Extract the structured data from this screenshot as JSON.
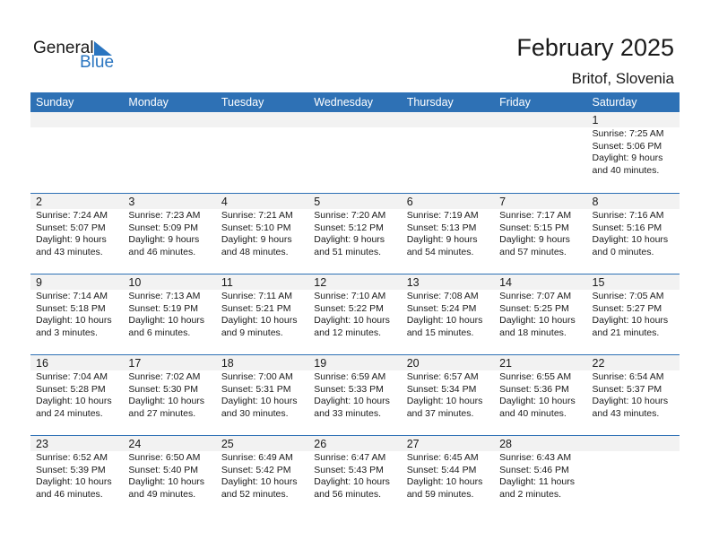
{
  "logo": {
    "line1": "General",
    "line2": "Blue"
  },
  "title": "February 2025",
  "location": "Britof, Slovenia",
  "colors": {
    "header": "#2e71b5",
    "date_strip": "#f2f2f2",
    "logo_blue": "#2a75c0"
  },
  "weekdays": [
    "Sunday",
    "Monday",
    "Tuesday",
    "Wednesday",
    "Thursday",
    "Friday",
    "Saturday"
  ],
  "weeks": [
    [
      null,
      null,
      null,
      null,
      null,
      null,
      {
        "day": "1",
        "sunrise": "Sunrise: 7:25 AM",
        "sunset": "Sunset: 5:06 PM",
        "daylight1": "Daylight: 9 hours",
        "daylight2": "and 40 minutes."
      }
    ],
    [
      {
        "day": "2",
        "sunrise": "Sunrise: 7:24 AM",
        "sunset": "Sunset: 5:07 PM",
        "daylight1": "Daylight: 9 hours",
        "daylight2": "and 43 minutes."
      },
      {
        "day": "3",
        "sunrise": "Sunrise: 7:23 AM",
        "sunset": "Sunset: 5:09 PM",
        "daylight1": "Daylight: 9 hours",
        "daylight2": "and 46 minutes."
      },
      {
        "day": "4",
        "sunrise": "Sunrise: 7:21 AM",
        "sunset": "Sunset: 5:10 PM",
        "daylight1": "Daylight: 9 hours",
        "daylight2": "and 48 minutes."
      },
      {
        "day": "5",
        "sunrise": "Sunrise: 7:20 AM",
        "sunset": "Sunset: 5:12 PM",
        "daylight1": "Daylight: 9 hours",
        "daylight2": "and 51 minutes."
      },
      {
        "day": "6",
        "sunrise": "Sunrise: 7:19 AM",
        "sunset": "Sunset: 5:13 PM",
        "daylight1": "Daylight: 9 hours",
        "daylight2": "and 54 minutes."
      },
      {
        "day": "7",
        "sunrise": "Sunrise: 7:17 AM",
        "sunset": "Sunset: 5:15 PM",
        "daylight1": "Daylight: 9 hours",
        "daylight2": "and 57 minutes."
      },
      {
        "day": "8",
        "sunrise": "Sunrise: 7:16 AM",
        "sunset": "Sunset: 5:16 PM",
        "daylight1": "Daylight: 10 hours",
        "daylight2": "and 0 minutes."
      }
    ],
    [
      {
        "day": "9",
        "sunrise": "Sunrise: 7:14 AM",
        "sunset": "Sunset: 5:18 PM",
        "daylight1": "Daylight: 10 hours",
        "daylight2": "and 3 minutes."
      },
      {
        "day": "10",
        "sunrise": "Sunrise: 7:13 AM",
        "sunset": "Sunset: 5:19 PM",
        "daylight1": "Daylight: 10 hours",
        "daylight2": "and 6 minutes."
      },
      {
        "day": "11",
        "sunrise": "Sunrise: 7:11 AM",
        "sunset": "Sunset: 5:21 PM",
        "daylight1": "Daylight: 10 hours",
        "daylight2": "and 9 minutes."
      },
      {
        "day": "12",
        "sunrise": "Sunrise: 7:10 AM",
        "sunset": "Sunset: 5:22 PM",
        "daylight1": "Daylight: 10 hours",
        "daylight2": "and 12 minutes."
      },
      {
        "day": "13",
        "sunrise": "Sunrise: 7:08 AM",
        "sunset": "Sunset: 5:24 PM",
        "daylight1": "Daylight: 10 hours",
        "daylight2": "and 15 minutes."
      },
      {
        "day": "14",
        "sunrise": "Sunrise: 7:07 AM",
        "sunset": "Sunset: 5:25 PM",
        "daylight1": "Daylight: 10 hours",
        "daylight2": "and 18 minutes."
      },
      {
        "day": "15",
        "sunrise": "Sunrise: 7:05 AM",
        "sunset": "Sunset: 5:27 PM",
        "daylight1": "Daylight: 10 hours",
        "daylight2": "and 21 minutes."
      }
    ],
    [
      {
        "day": "16",
        "sunrise": "Sunrise: 7:04 AM",
        "sunset": "Sunset: 5:28 PM",
        "daylight1": "Daylight: 10 hours",
        "daylight2": "and 24 minutes."
      },
      {
        "day": "17",
        "sunrise": "Sunrise: 7:02 AM",
        "sunset": "Sunset: 5:30 PM",
        "daylight1": "Daylight: 10 hours",
        "daylight2": "and 27 minutes."
      },
      {
        "day": "18",
        "sunrise": "Sunrise: 7:00 AM",
        "sunset": "Sunset: 5:31 PM",
        "daylight1": "Daylight: 10 hours",
        "daylight2": "and 30 minutes."
      },
      {
        "day": "19",
        "sunrise": "Sunrise: 6:59 AM",
        "sunset": "Sunset: 5:33 PM",
        "daylight1": "Daylight: 10 hours",
        "daylight2": "and 33 minutes."
      },
      {
        "day": "20",
        "sunrise": "Sunrise: 6:57 AM",
        "sunset": "Sunset: 5:34 PM",
        "daylight1": "Daylight: 10 hours",
        "daylight2": "and 37 minutes."
      },
      {
        "day": "21",
        "sunrise": "Sunrise: 6:55 AM",
        "sunset": "Sunset: 5:36 PM",
        "daylight1": "Daylight: 10 hours",
        "daylight2": "and 40 minutes."
      },
      {
        "day": "22",
        "sunrise": "Sunrise: 6:54 AM",
        "sunset": "Sunset: 5:37 PM",
        "daylight1": "Daylight: 10 hours",
        "daylight2": "and 43 minutes."
      }
    ],
    [
      {
        "day": "23",
        "sunrise": "Sunrise: 6:52 AM",
        "sunset": "Sunset: 5:39 PM",
        "daylight1": "Daylight: 10 hours",
        "daylight2": "and 46 minutes."
      },
      {
        "day": "24",
        "sunrise": "Sunrise: 6:50 AM",
        "sunset": "Sunset: 5:40 PM",
        "daylight1": "Daylight: 10 hours",
        "daylight2": "and 49 minutes."
      },
      {
        "day": "25",
        "sunrise": "Sunrise: 6:49 AM",
        "sunset": "Sunset: 5:42 PM",
        "daylight1": "Daylight: 10 hours",
        "daylight2": "and 52 minutes."
      },
      {
        "day": "26",
        "sunrise": "Sunrise: 6:47 AM",
        "sunset": "Sunset: 5:43 PM",
        "daylight1": "Daylight: 10 hours",
        "daylight2": "and 56 minutes."
      },
      {
        "day": "27",
        "sunrise": "Sunrise: 6:45 AM",
        "sunset": "Sunset: 5:44 PM",
        "daylight1": "Daylight: 10 hours",
        "daylight2": "and 59 minutes."
      },
      {
        "day": "28",
        "sunrise": "Sunrise: 6:43 AM",
        "sunset": "Sunset: 5:46 PM",
        "daylight1": "Daylight: 11 hours",
        "daylight2": "and 2 minutes."
      },
      null
    ]
  ]
}
